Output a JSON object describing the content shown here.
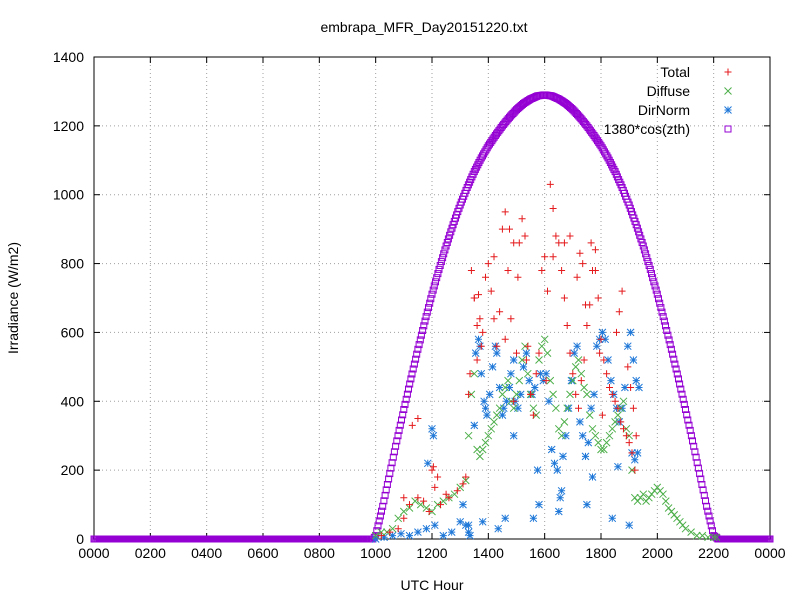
{
  "chart_data": {
    "type": "scatter",
    "title": "embrapa_MFR_Day20151220.txt",
    "xlabel": "UTC Hour",
    "ylabel": "Irradiance (W/m2)",
    "xlim": [
      0,
      24
    ],
    "ylim": [
      0,
      1400
    ],
    "grid": true,
    "legend_position": "top-right",
    "x_ticks": [
      {
        "value": 0,
        "label": "0000"
      },
      {
        "value": 2,
        "label": "0200"
      },
      {
        "value": 4,
        "label": "0400"
      },
      {
        "value": 6,
        "label": "0600"
      },
      {
        "value": 8,
        "label": "0800"
      },
      {
        "value": 10,
        "label": "1000"
      },
      {
        "value": 12,
        "label": "1200"
      },
      {
        "value": 14,
        "label": "1400"
      },
      {
        "value": 16,
        "label": "1600"
      },
      {
        "value": 18,
        "label": "1800"
      },
      {
        "value": 20,
        "label": "2000"
      },
      {
        "value": 22,
        "label": "2200"
      },
      {
        "value": 24,
        "label": "0000"
      }
    ],
    "y_ticks": [
      0,
      200,
      400,
      600,
      800,
      1000,
      1200,
      1400
    ],
    "series": [
      {
        "name": "Total",
        "marker": "plus",
        "color": "#e41a1c",
        "x": [
          10.2,
          10.5,
          10.8,
          11.0,
          11.2,
          11.5,
          11.7,
          11.9,
          12.1,
          12.3,
          12.6,
          12.9,
          13.1,
          13.2,
          13.3,
          13.4,
          13.5,
          13.6,
          13.7,
          13.8,
          13.9,
          14.0,
          14.1,
          14.2,
          14.3,
          14.4,
          14.5,
          14.6,
          14.7,
          14.8,
          14.9,
          15.0,
          15.1,
          15.2,
          15.3,
          15.4,
          15.5,
          15.6,
          15.7,
          15.8,
          15.9,
          16.0,
          16.1,
          16.2,
          16.3,
          16.4,
          16.5,
          16.6,
          16.7,
          16.8,
          16.9,
          17.0,
          17.1,
          17.2,
          17.3,
          17.4,
          17.5,
          17.6,
          17.7,
          17.8,
          17.9,
          18.0,
          18.1,
          18.2,
          18.3,
          18.4,
          18.5,
          18.6,
          18.7,
          18.8,
          18.9,
          19.0,
          19.1,
          19.2,
          11.0,
          11.3,
          11.5,
          12.0,
          12.05,
          12.2,
          12.5,
          13.35,
          13.5,
          13.6,
          13.65,
          13.75,
          14.2,
          14.6,
          14.75,
          14.9,
          15.05,
          15.35,
          15.5,
          16.05,
          16.3,
          16.7,
          16.9,
          17.15,
          17.25,
          17.35,
          17.45,
          17.65,
          17.8,
          17.95,
          18.05,
          18.55,
          18.65,
          18.75,
          18.95,
          19.05,
          19.15,
          19.25
        ],
        "y": [
          10,
          20,
          30,
          60,
          100,
          120,
          110,
          80,
          150,
          100,
          120,
          140,
          160,
          180,
          420,
          780,
          700,
          520,
          640,
          600,
          760,
          800,
          720,
          820,
          560,
          660,
          900,
          950,
          780,
          640,
          400,
          540,
          860,
          930,
          880,
          560,
          420,
          360,
          480,
          540,
          780,
          820,
          720,
          1030,
          960,
          880,
          860,
          780,
          700,
          620,
          540,
          480,
          420,
          380,
          460,
          520,
          620,
          680,
          780,
          840,
          700,
          580,
          520,
          480,
          440,
          420,
          400,
          380,
          340,
          320,
          300,
          280,
          250,
          200,
          120,
          330,
          350,
          200,
          210,
          180,
          130,
          480,
          700,
          620,
          710,
          560,
          640,
          580,
          900,
          860,
          760,
          520,
          420,
          460,
          820,
          860,
          880,
          760,
          830,
          800,
          680,
          860,
          780,
          540,
          360,
          600,
          660,
          720,
          500,
          440,
          380,
          300
        ]
      },
      {
        "name": "Diffuse",
        "marker": "cross",
        "color": "#4daf4a",
        "x": [
          10.0,
          10.2,
          10.4,
          10.6,
          10.8,
          11.0,
          11.2,
          11.4,
          11.6,
          11.8,
          12.0,
          12.2,
          12.4,
          12.6,
          12.8,
          13.0,
          13.2,
          13.3,
          13.4,
          13.5,
          13.6,
          13.7,
          13.8,
          13.9,
          14.0,
          14.1,
          14.2,
          14.3,
          14.4,
          14.5,
          14.6,
          14.7,
          14.8,
          14.9,
          15.0,
          15.1,
          15.2,
          15.3,
          15.4,
          15.5,
          15.6,
          15.7,
          15.8,
          15.9,
          16.0,
          16.1,
          16.2,
          16.3,
          16.4,
          16.5,
          16.6,
          16.7,
          16.8,
          16.9,
          17.0,
          17.1,
          17.2,
          17.3,
          17.4,
          17.5,
          17.6,
          17.7,
          17.8,
          17.9,
          18.0,
          18.1,
          18.2,
          18.3,
          18.4,
          18.5,
          18.6,
          18.7,
          18.8,
          18.9,
          19.0,
          19.1,
          19.2,
          19.3,
          19.4,
          19.5,
          19.6,
          19.7,
          19.8,
          19.9,
          20.0,
          20.1,
          20.2,
          20.3,
          20.4,
          20.5,
          20.6,
          20.7,
          20.8,
          20.9,
          21.0,
          21.2,
          21.4,
          21.6,
          21.8,
          22.0,
          22.1
        ],
        "y": [
          10,
          20,
          20,
          30,
          60,
          80,
          90,
          110,
          100,
          90,
          80,
          100,
          110,
          120,
          130,
          150,
          170,
          300,
          420,
          480,
          260,
          240,
          260,
          280,
          300,
          320,
          340,
          360,
          380,
          420,
          440,
          460,
          400,
          380,
          420,
          460,
          520,
          560,
          480,
          420,
          380,
          360,
          520,
          560,
          580,
          540,
          460,
          420,
          380,
          320,
          300,
          340,
          380,
          420,
          460,
          500,
          520,
          480,
          440,
          420,
          360,
          320,
          300,
          280,
          260,
          260,
          280,
          300,
          320,
          340,
          360,
          380,
          400,
          320,
          300,
          200,
          120,
          110,
          120,
          130,
          110,
          120,
          130,
          140,
          150,
          140,
          130,
          110,
          90,
          80,
          70,
          60,
          50,
          40,
          30,
          20,
          10,
          10,
          5,
          5,
          5
        ]
      },
      {
        "name": "DirNorm",
        "marker": "star",
        "color": "#1f78d8",
        "x": [
          10.0,
          10.3,
          10.6,
          10.9,
          11.2,
          11.5,
          11.8,
          12.1,
          12.4,
          12.7,
          13.0,
          13.2,
          13.3,
          13.35,
          13.5,
          13.55,
          13.65,
          13.7,
          13.75,
          13.85,
          13.9,
          13.95,
          14.05,
          14.15,
          14.25,
          14.3,
          14.4,
          14.5,
          14.55,
          14.65,
          14.75,
          14.8,
          14.9,
          14.95,
          15.05,
          15.15,
          15.25,
          15.35,
          15.45,
          15.55,
          15.65,
          15.75,
          15.85,
          15.95,
          16.05,
          16.15,
          16.25,
          16.35,
          16.45,
          16.55,
          16.65,
          16.75,
          16.85,
          16.95,
          17.05,
          17.15,
          17.25,
          17.35,
          17.45,
          17.55,
          17.65,
          17.75,
          17.85,
          17.95,
          18.05,
          18.15,
          18.25,
          18.35,
          18.45,
          18.55,
          18.65,
          18.75,
          18.85,
          18.95,
          19.05,
          19.15,
          19.25,
          19.35,
          12.0,
          12.05,
          11.85,
          13.8,
          14.35,
          15.6,
          16.5,
          17.5,
          18.4,
          19.0,
          19.1,
          19.2,
          13.1,
          13.3,
          14.6,
          14.9,
          15.8,
          16.6,
          17.7,
          18.6,
          19.3
        ],
        "y": [
          0,
          5,
          10,
          15,
          10,
          20,
          30,
          40,
          10,
          20,
          50,
          40,
          20,
          10,
          330,
          540,
          580,
          560,
          480,
          400,
          380,
          360,
          420,
          500,
          560,
          540,
          440,
          360,
          380,
          400,
          440,
          480,
          520,
          400,
          380,
          420,
          500,
          540,
          460,
          420,
          440,
          200,
          480,
          460,
          480,
          400,
          260,
          220,
          200,
          120,
          240,
          300,
          380,
          460,
          540,
          560,
          340,
          300,
          240,
          280,
          380,
          420,
          560,
          580,
          600,
          580,
          520,
          460,
          420,
          380,
          340,
          380,
          440,
          560,
          600,
          520,
          460,
          440,
          320,
          300,
          220,
          50,
          30,
          60,
          80,
          100,
          60,
          40,
          250,
          230,
          100,
          40,
          60,
          300,
          100,
          140,
          180,
          210,
          250
        ]
      },
      {
        "name": "1380*cos(zth)",
        "marker": "square",
        "color": "#9400d3",
        "x": [
          0,
          0.5,
          1,
          1.5,
          2,
          2.5,
          3,
          3.5,
          4,
          4.5,
          5,
          5.5,
          6,
          6.5,
          7,
          7.5,
          8,
          8.5,
          9,
          9.5,
          9.9,
          10.0,
          10.25,
          10.5,
          10.75,
          11.0,
          11.25,
          11.5,
          11.75,
          12.0,
          12.25,
          12.5,
          12.75,
          13.0,
          13.25,
          13.5,
          13.75,
          14.0,
          14.25,
          14.5,
          14.75,
          15.0,
          15.25,
          15.5,
          15.75,
          16.0,
          16.25,
          16.5,
          16.75,
          17.0,
          17.25,
          17.5,
          17.75,
          18.0,
          18.25,
          18.5,
          18.75,
          19.0,
          19.25,
          19.5,
          19.75,
          20.0,
          20.25,
          20.5,
          20.75,
          21.0,
          21.25,
          21.5,
          21.75,
          22.0,
          22.15,
          22.3,
          22.5,
          23.0,
          23.5,
          24.0
        ],
        "y": [
          0,
          0,
          0,
          0,
          0,
          0,
          0,
          0,
          0,
          0,
          0,
          0,
          0,
          0,
          0,
          0,
          0,
          0,
          0,
          0,
          0,
          10,
          95,
          190,
          285,
          376,
          465,
          551,
          633,
          711,
          783,
          851,
          913,
          970,
          1021,
          1067,
          1107,
          1142,
          1172,
          1200,
          1225,
          1247,
          1265,
          1278,
          1287,
          1290,
          1287,
          1278,
          1265,
          1247,
          1225,
          1200,
          1172,
          1142,
          1107,
          1067,
          1021,
          970,
          913,
          851,
          783,
          711,
          633,
          551,
          465,
          376,
          285,
          190,
          95,
          10,
          0,
          0,
          0,
          0,
          0,
          0
        ]
      }
    ]
  }
}
